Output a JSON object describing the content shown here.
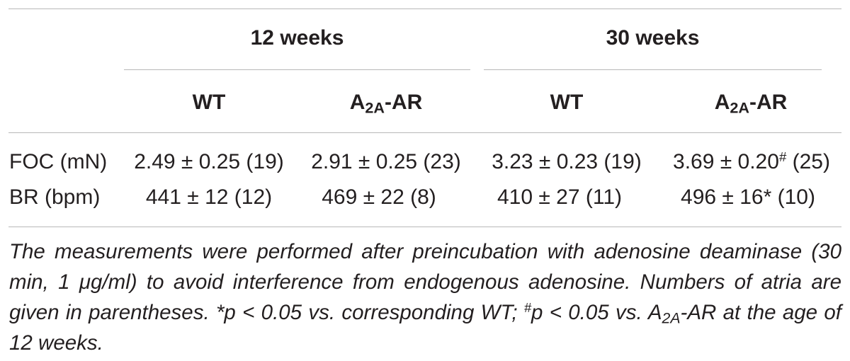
{
  "header": {
    "group1": "12 weeks",
    "group2": "30 weeks",
    "col_wt": "WT",
    "col_a2a_main": "A",
    "col_a2a_sub": "2A",
    "col_a2a_suffix": "-AR"
  },
  "rows": [
    {
      "label": "FOC (mN)",
      "cells": [
        {
          "main": "2.49 ± 0.25 (19)"
        },
        {
          "main": "2.91 ± 0.25 (23)"
        },
        {
          "main": "3.23 ± 0.23 (19)"
        },
        {
          "main": "3.69 ± 0.20",
          "sup": "#",
          "after": " (25)"
        }
      ]
    },
    {
      "label": "BR (bpm)",
      "cells": [
        {
          "main": "441 ± 12 (12)"
        },
        {
          "main": "469 ± 22 (8)"
        },
        {
          "main": "410 ± 27 (11)"
        },
        {
          "main": "496 ± 16* (10)"
        }
      ]
    }
  ],
  "footnote": {
    "part1": "The measurements were performed after preincubation with adenosine deaminase (30 min, 1 ",
    "mu": "μ",
    "part2": "g/ml) to avoid interference from endogenous adenosine. Numbers of atria are given in parentheses. *p < 0.05 vs. corresponding WT; ",
    "sup": "#",
    "part3": "p < 0.05 vs. A",
    "sub": "2A",
    "part4": "-AR at the age of 12 weeks."
  }
}
